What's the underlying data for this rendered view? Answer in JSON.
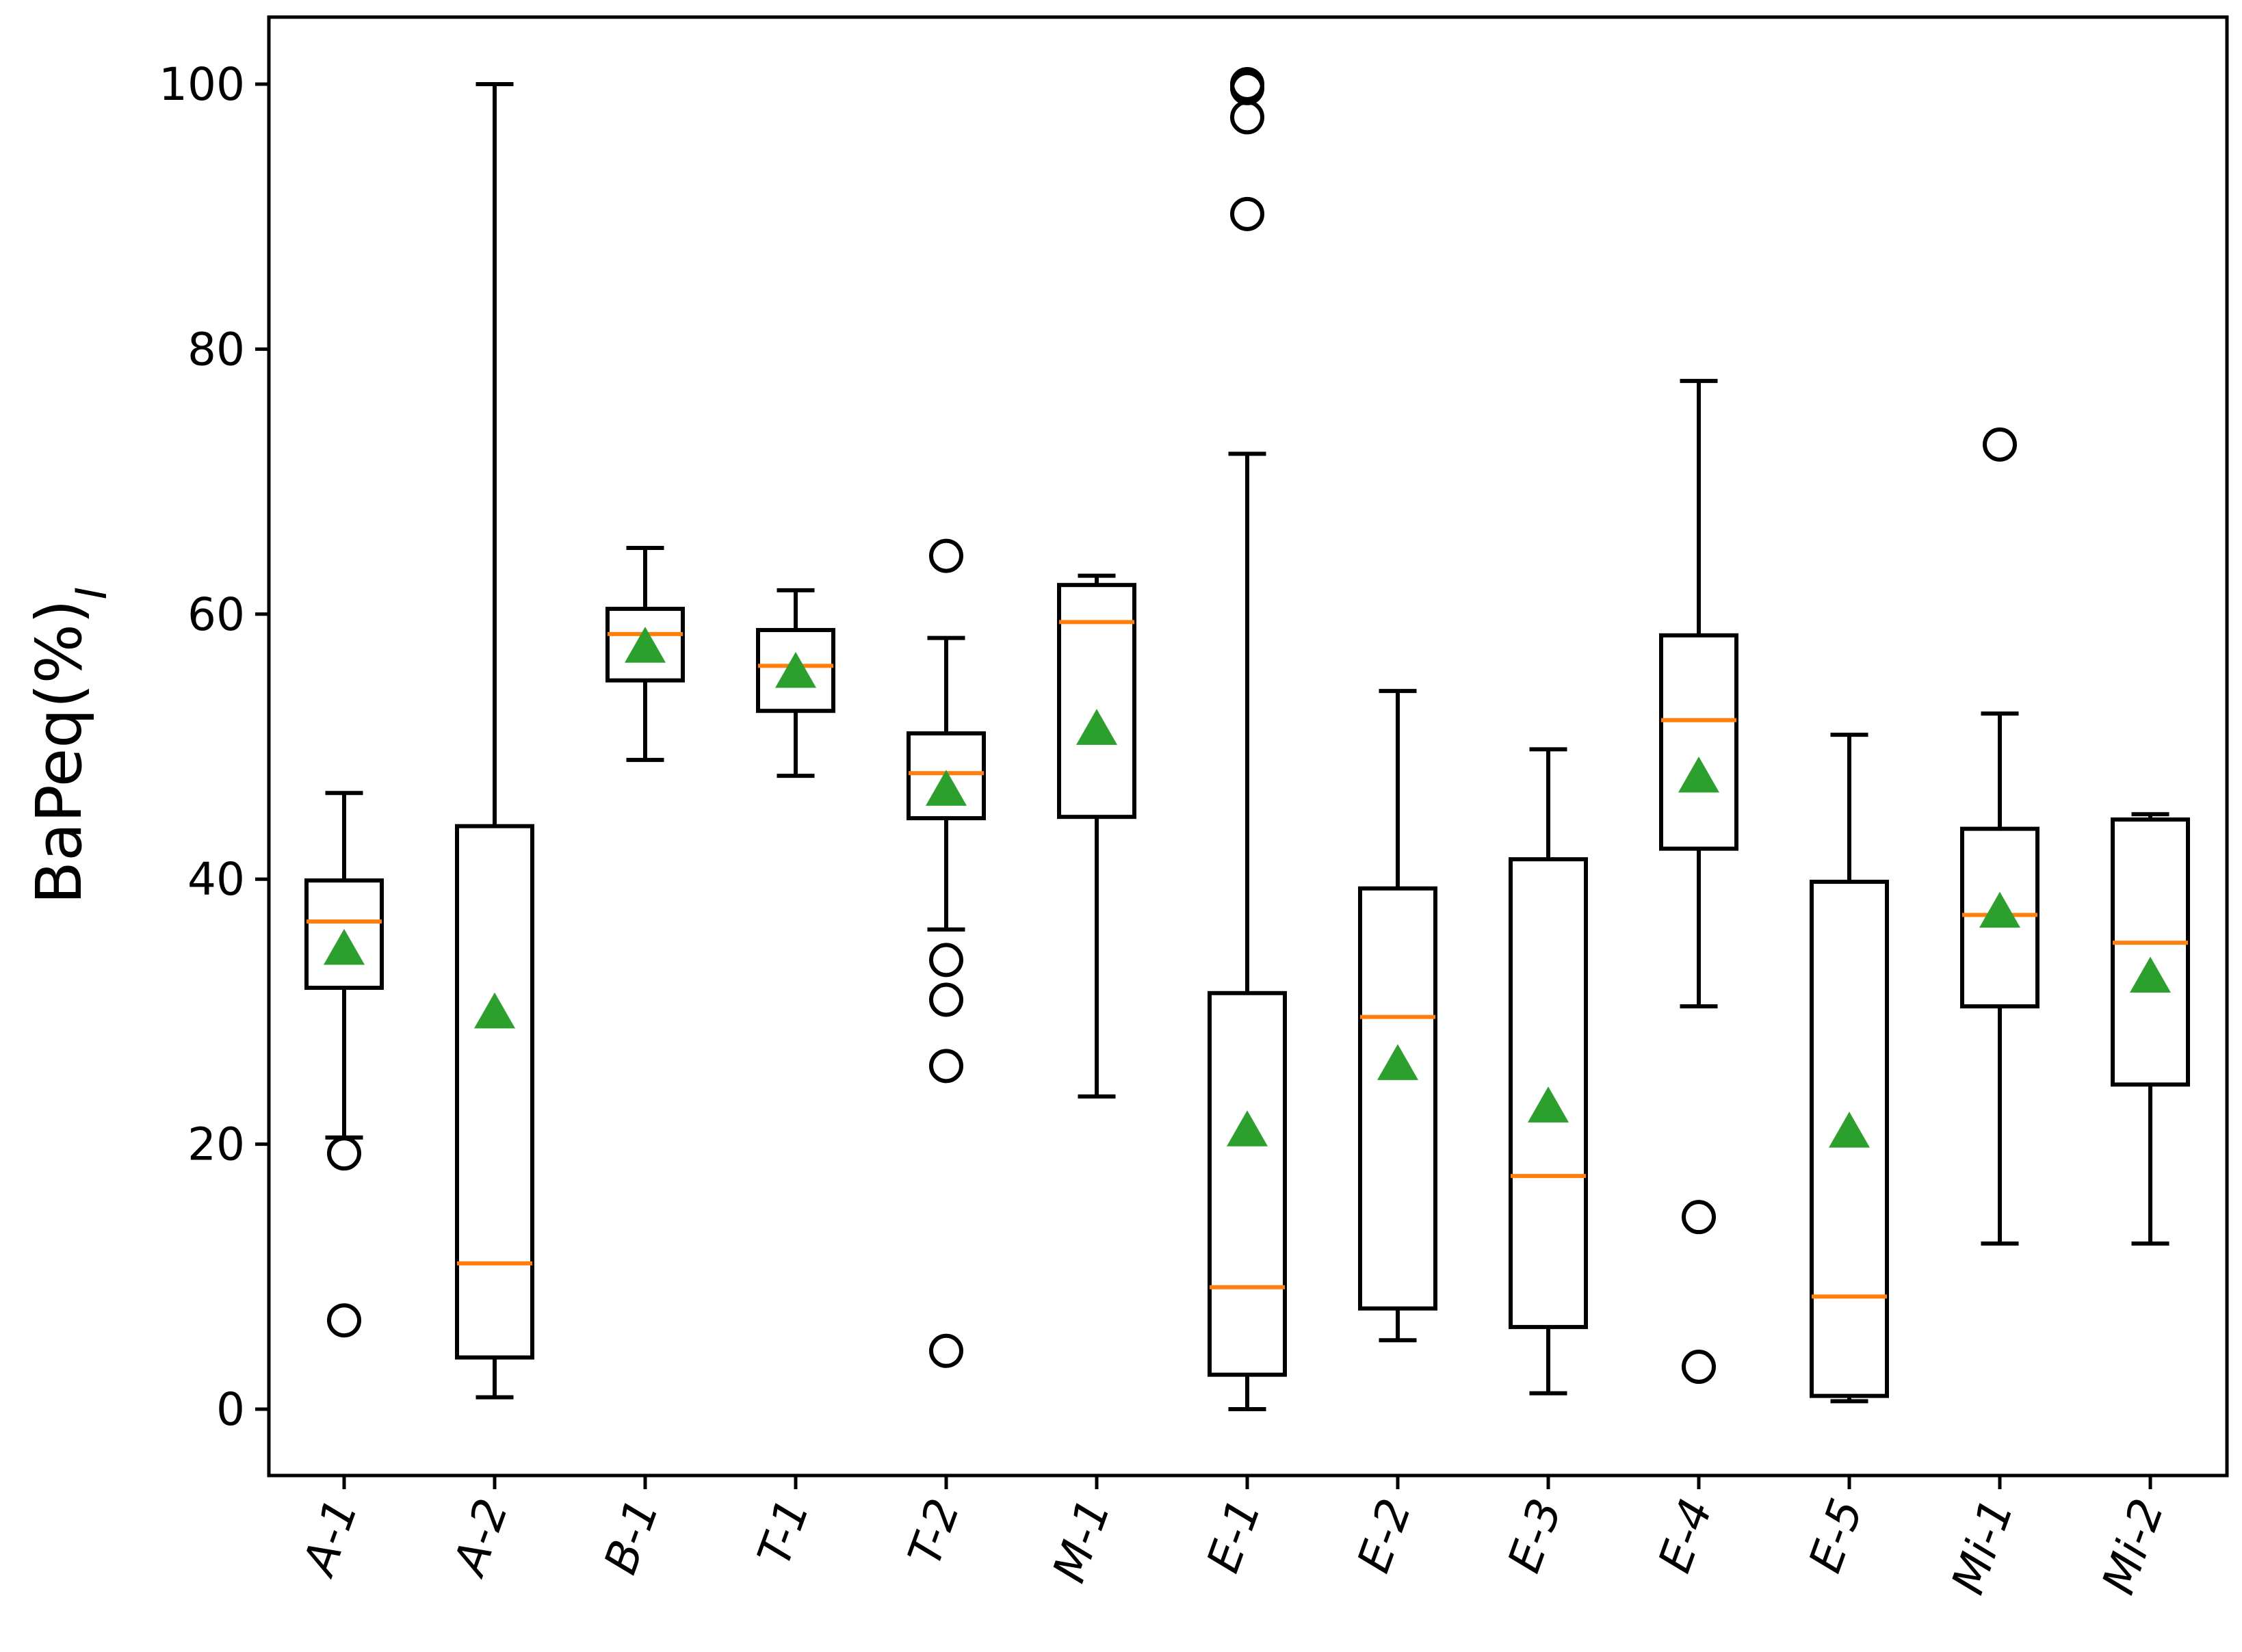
{
  "chart_data": {
    "type": "box",
    "title": "",
    "xlabel": "",
    "ylabel": "BaPeq(%)",
    "ylabel_subscript": "I",
    "ylim": [
      -5,
      105
    ],
    "yticks": [
      0,
      20,
      40,
      60,
      80,
      100
    ],
    "grid": false,
    "colors": {
      "box": "#000000",
      "median": "#ff7f0e",
      "mean_marker": "#2ca02c",
      "flier": "#000000"
    },
    "categories": [
      "A-1",
      "A-2",
      "B-1",
      "T-1",
      "T-2",
      "M-1",
      "E-1",
      "E-2",
      "E-3",
      "E-4",
      "E-5",
      "Mi-1",
      "Mi-2"
    ],
    "boxes": [
      {
        "label": "A-1",
        "whisker_low": 20.5,
        "q1": 31.8,
        "median": 36.8,
        "q3": 39.9,
        "whisker_high": 46.5,
        "mean": 34.7,
        "fliers": [
          19.3,
          6.7
        ]
      },
      {
        "label": "A-2",
        "whisker_low": 0.9,
        "q1": 3.9,
        "median": 11.0,
        "q3": 44.0,
        "whisker_high": 100.0,
        "mean": 29.9,
        "fliers": []
      },
      {
        "label": "B-1",
        "whisker_low": 49.0,
        "q1": 55.0,
        "median": 58.5,
        "q3": 60.4,
        "whisker_high": 65.0,
        "mean": 57.5,
        "fliers": []
      },
      {
        "label": "T-1",
        "whisker_low": 47.8,
        "q1": 52.7,
        "median": 56.1,
        "q3": 58.8,
        "whisker_high": 61.8,
        "mean": 55.6,
        "fliers": []
      },
      {
        "label": "T-2",
        "whisker_low": 36.2,
        "q1": 44.6,
        "median": 48.0,
        "q3": 51.0,
        "whisker_high": 58.2,
        "mean": 46.7,
        "fliers": [
          64.4,
          33.9,
          30.9,
          25.9,
          4.4
        ]
      },
      {
        "label": "M-1",
        "whisker_low": 23.6,
        "q1": 44.7,
        "median": 59.4,
        "q3": 62.2,
        "whisker_high": 62.9,
        "mean": 51.3,
        "fliers": []
      },
      {
        "label": "E-1",
        "whisker_low": 0.0,
        "q1": 2.6,
        "median": 9.2,
        "q3": 31.4,
        "whisker_high": 72.1,
        "mean": 21.0,
        "fliers": [
          100.0,
          99.7,
          97.5,
          90.2
        ]
      },
      {
        "label": "E-2",
        "whisker_low": 5.2,
        "q1": 7.6,
        "median": 29.6,
        "q3": 39.3,
        "whisker_high": 54.2,
        "mean": 26.0,
        "fliers": []
      },
      {
        "label": "E-3",
        "whisker_low": 1.2,
        "q1": 6.2,
        "median": 17.6,
        "q3": 41.5,
        "whisker_high": 49.8,
        "mean": 22.8,
        "fliers": []
      },
      {
        "label": "E-4",
        "whisker_low": 30.4,
        "q1": 42.3,
        "median": 52.0,
        "q3": 58.4,
        "whisker_high": 77.6,
        "mean": 47.7,
        "fliers": [
          14.5,
          3.2
        ]
      },
      {
        "label": "E-5",
        "whisker_low": 0.6,
        "q1": 1.0,
        "median": 8.5,
        "q3": 39.8,
        "whisker_high": 50.9,
        "mean": 20.9,
        "fliers": []
      },
      {
        "label": "Mi-1",
        "whisker_low": 12.5,
        "q1": 30.4,
        "median": 37.3,
        "q3": 43.8,
        "whisker_high": 52.5,
        "mean": 37.5,
        "fliers": [
          72.8
        ]
      },
      {
        "label": "Mi-2",
        "whisker_low": 12.5,
        "q1": 24.5,
        "median": 35.2,
        "q3": 44.5,
        "whisker_high": 44.9,
        "mean": 32.6,
        "fliers": []
      }
    ]
  }
}
